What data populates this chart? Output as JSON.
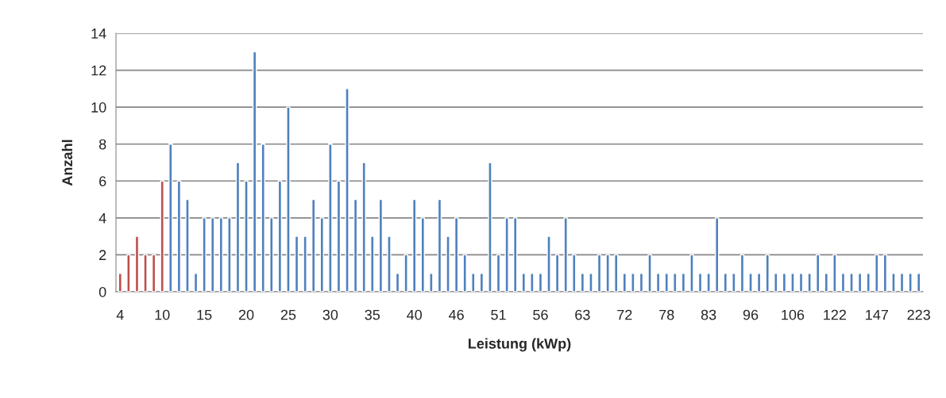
{
  "chart_data": {
    "type": "bar",
    "xlabel": "Leistung (kWp)",
    "ylabel": "Anzahl",
    "categories": [
      "4",
      null,
      null,
      null,
      null,
      "10",
      null,
      null,
      null,
      null,
      "15",
      null,
      null,
      null,
      null,
      "20",
      null,
      null,
      null,
      null,
      "25",
      null,
      null,
      null,
      null,
      "30",
      null,
      null,
      null,
      null,
      "35",
      null,
      null,
      null,
      null,
      "40",
      null,
      null,
      null,
      null,
      "46",
      null,
      null,
      null,
      null,
      "51",
      null,
      null,
      null,
      null,
      "56",
      null,
      null,
      null,
      null,
      "63",
      null,
      null,
      null,
      null,
      "72",
      null,
      null,
      null,
      null,
      "78",
      null,
      null,
      null,
      null,
      "83",
      null,
      null,
      null,
      null,
      "96",
      null,
      null,
      null,
      null,
      "106",
      null,
      null,
      null,
      null,
      "122",
      null,
      null,
      null,
      null,
      "147",
      null,
      null,
      null,
      null,
      "223"
    ],
    "values": [
      1,
      2,
      3,
      2,
      2,
      6,
      8,
      6,
      5,
      1,
      4,
      4,
      4,
      4,
      7,
      6,
      13,
      8,
      4,
      6,
      10,
      3,
      3,
      5,
      4,
      8,
      6,
      11,
      5,
      7,
      3,
      5,
      3,
      1,
      2,
      5,
      4,
      1,
      5,
      3,
      4,
      2,
      1,
      1,
      7,
      2,
      4,
      4,
      1,
      1,
      1,
      3,
      2,
      4,
      2,
      1,
      1,
      2,
      2,
      2,
      1,
      1,
      1,
      2,
      1,
      1,
      1,
      1,
      2,
      1,
      1,
      4,
      1,
      1,
      2,
      1,
      1,
      2,
      1,
      1,
      1,
      1,
      1,
      2,
      1,
      2,
      1,
      1,
      1,
      1,
      2,
      2,
      1,
      1,
      1,
      1
    ],
    "colors": [
      "#c0504d",
      "#c0504d",
      "#c0504d",
      "#c0504d",
      "#c0504d",
      "#c0504d",
      "#4f81bd",
      "#4f81bd",
      "#4f81bd",
      "#4f81bd",
      "#4f81bd",
      "#4f81bd",
      "#4f81bd",
      "#4f81bd",
      "#4f81bd",
      "#4f81bd",
      "#4f81bd",
      "#4f81bd",
      "#4f81bd",
      "#4f81bd",
      "#4f81bd",
      "#4f81bd",
      "#4f81bd",
      "#4f81bd",
      "#4f81bd",
      "#4f81bd",
      "#4f81bd",
      "#4f81bd",
      "#4f81bd",
      "#4f81bd",
      "#4f81bd",
      "#4f81bd",
      "#4f81bd",
      "#4f81bd",
      "#4f81bd",
      "#4f81bd",
      "#4f81bd",
      "#4f81bd",
      "#4f81bd",
      "#4f81bd",
      "#4f81bd",
      "#4f81bd",
      "#4f81bd",
      "#4f81bd",
      "#4f81bd",
      "#4f81bd",
      "#4f81bd",
      "#4f81bd",
      "#4f81bd",
      "#4f81bd",
      "#4f81bd",
      "#4f81bd",
      "#4f81bd",
      "#4f81bd",
      "#4f81bd",
      "#4f81bd",
      "#4f81bd",
      "#4f81bd",
      "#4f81bd",
      "#4f81bd",
      "#4f81bd",
      "#4f81bd",
      "#4f81bd",
      "#4f81bd",
      "#4f81bd",
      "#4f81bd",
      "#4f81bd",
      "#4f81bd",
      "#4f81bd",
      "#4f81bd",
      "#4f81bd",
      "#4f81bd",
      "#4f81bd",
      "#4f81bd",
      "#4f81bd",
      "#4f81bd",
      "#4f81bd",
      "#4f81bd",
      "#4f81bd",
      "#4f81bd",
      "#4f81bd",
      "#4f81bd",
      "#4f81bd",
      "#4f81bd",
      "#4f81bd",
      "#4f81bd",
      "#4f81bd",
      "#4f81bd",
      "#4f81bd",
      "#4f81bd",
      "#4f81bd",
      "#4f81bd",
      "#4f81bd",
      "#4f81bd",
      "#4f81bd",
      "#4f81bd"
    ],
    "ylim": [
      0,
      14
    ],
    "yticks": [
      0,
      2,
      4,
      6,
      8,
      10,
      12,
      14
    ],
    "grid": "y"
  }
}
